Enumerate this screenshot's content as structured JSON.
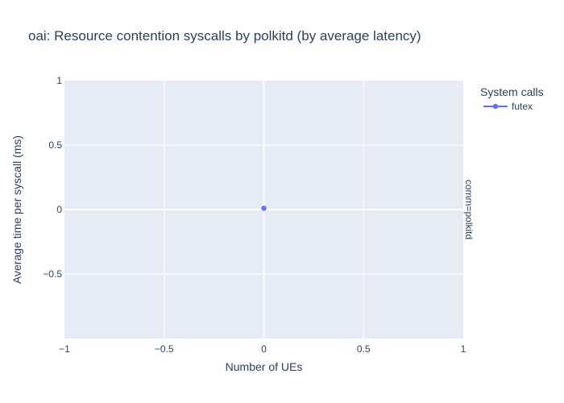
{
  "chart_data": {
    "type": "scatter",
    "title": "oai: Resource contention syscalls by polkitd (by average latency)",
    "xlabel": "Number of UEs",
    "ylabel": "Average time per syscall (ms)",
    "xlim": [
      -1,
      1
    ],
    "ylim": [
      -1,
      1
    ],
    "x_ticks": [
      -1,
      -0.5,
      0,
      0.5,
      1
    ],
    "y_ticks": [
      -0.5,
      0,
      0.5,
      1
    ],
    "x_tick_labels": [
      "−1",
      "−0.5",
      "0",
      "0.5",
      "1"
    ],
    "y_tick_labels": [
      "−0.5",
      "0",
      "0.5",
      "1"
    ],
    "grid": true,
    "legend": {
      "title": "System calls",
      "placement": "right"
    },
    "facet_label": "comm=polkitd",
    "series": [
      {
        "name": "futex",
        "color": "#636efa",
        "x": [
          0
        ],
        "y": [
          0.01
        ]
      }
    ]
  },
  "colors": {
    "plot_background": "#e5ecf6",
    "grid": "#ffffff",
    "text": "#2a3f5f"
  }
}
